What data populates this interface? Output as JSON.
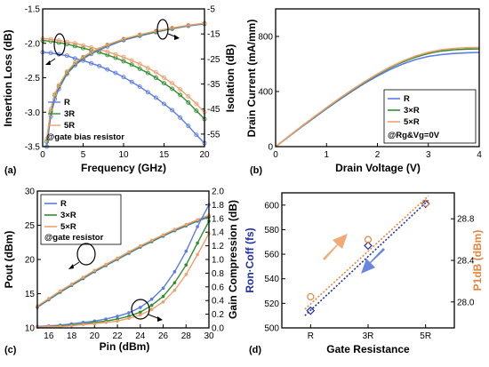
{
  "colors": {
    "R": "#5b7be8",
    "3R": "#2f8f2f",
    "5R": "#f0a070",
    "RonCoff": "#1f2fa8",
    "P1dB": "#e8843c",
    "arrow_orange": "#f09a60",
    "arrow_blue": "#4f72d8"
  },
  "panels": {
    "a": {
      "label": "(a)"
    },
    "b": {
      "label": "(b)"
    },
    "c": {
      "label": "(c)"
    },
    "d": {
      "label": "(d)"
    }
  },
  "chart_data": [
    {
      "panel": "a",
      "type": "line",
      "xlabel": "Frequency (GHz)",
      "ylabel_left": "Insertion Loss (dB)",
      "ylabel_right": "Isolation (dB)",
      "xlim": [
        0,
        20
      ],
      "ylim_left": [
        -3.5,
        -1.5
      ],
      "ylim_right": [
        -60,
        -5
      ],
      "x_ticks": [
        "0",
        "5",
        "10",
        "15",
        "20"
      ],
      "y_ticks_left": [
        "-3.5",
        "-3.0",
        "-2.5",
        "-2.0",
        "-1.5"
      ],
      "y_ticks_right": [
        "-55",
        "-45",
        "-35",
        "-25",
        "-15",
        "-5"
      ],
      "legend": [
        "R",
        "3R",
        "5R"
      ],
      "annotation": "@gate bias resistor",
      "series": [
        {
          "name": "R",
          "axis": "left",
          "x": [
            0,
            1,
            2,
            3,
            4,
            5,
            6,
            7,
            8,
            9,
            10,
            11,
            12,
            13,
            14,
            15,
            16,
            17,
            18,
            19,
            20
          ],
          "y": [
            -2.13,
            -2.14,
            -2.16,
            -2.18,
            -2.22,
            -2.25,
            -2.29,
            -2.33,
            -2.38,
            -2.43,
            -2.49,
            -2.56,
            -2.63,
            -2.71,
            -2.79,
            -2.88,
            -2.97,
            -3.08,
            -3.2,
            -3.33,
            -3.45
          ]
        },
        {
          "name": "3R",
          "axis": "left",
          "x": [
            0,
            1,
            2,
            3,
            4,
            5,
            6,
            7,
            8,
            9,
            10,
            11,
            12,
            13,
            14,
            15,
            16,
            17,
            18,
            19,
            20
          ],
          "y": [
            -1.96,
            -1.97,
            -1.99,
            -2.01,
            -2.04,
            -2.07,
            -2.1,
            -2.13,
            -2.17,
            -2.21,
            -2.26,
            -2.31,
            -2.37,
            -2.43,
            -2.5,
            -2.58,
            -2.66,
            -2.75,
            -2.86,
            -2.98,
            -3.1
          ]
        },
        {
          "name": "5R",
          "axis": "left",
          "x": [
            0,
            1,
            2,
            3,
            4,
            5,
            6,
            7,
            8,
            9,
            10,
            11,
            12,
            13,
            14,
            15,
            16,
            17,
            18,
            19,
            20
          ],
          "y": [
            -1.93,
            -1.94,
            -1.96,
            -1.98,
            -2.0,
            -2.03,
            -2.06,
            -2.09,
            -2.12,
            -2.16,
            -2.2,
            -2.25,
            -2.3,
            -2.36,
            -2.42,
            -2.5,
            -2.58,
            -2.67,
            -2.77,
            -2.88,
            -3.0
          ]
        },
        {
          "name": "R",
          "axis": "right",
          "x": [
            0.5,
            1,
            1.5,
            2,
            3,
            4,
            5,
            6,
            8,
            10,
            12,
            14,
            16,
            18,
            20
          ],
          "y": [
            -60,
            -48,
            -41,
            -37,
            -31,
            -27.5,
            -25,
            -23,
            -20,
            -17.5,
            -15.8,
            -14.3,
            -13,
            -11.8,
            -11
          ]
        },
        {
          "name": "3R",
          "axis": "right",
          "x": [
            0.5,
            1,
            1.5,
            2,
            3,
            4,
            5,
            6,
            8,
            10,
            12,
            14,
            16,
            18,
            20
          ],
          "y": [
            -58,
            -46,
            -39.5,
            -36,
            -30.5,
            -27,
            -24.5,
            -22.5,
            -19.5,
            -17.2,
            -15.5,
            -14,
            -12.8,
            -11.6,
            -10.8
          ]
        },
        {
          "name": "5R",
          "axis": "right",
          "x": [
            0.5,
            1,
            1.5,
            2,
            3,
            4,
            5,
            6,
            8,
            10,
            12,
            14,
            16,
            18,
            20
          ],
          "y": [
            -57,
            -45,
            -39,
            -35.5,
            -30,
            -26.5,
            -24.2,
            -22.2,
            -19.3,
            -17,
            -15.3,
            -13.8,
            -12.6,
            -11.5,
            -10.7
          ]
        }
      ]
    },
    {
      "panel": "b",
      "type": "line",
      "xlabel": "Drain Voltage (V)",
      "ylabel": "Drain Current (mA/mm)",
      "xlim": [
        0,
        4
      ],
      "ylim": [
        0,
        1000
      ],
      "x_ticks": [
        "0",
        "1",
        "2",
        "3",
        "4"
      ],
      "y_ticks": [
        "0",
        "400",
        "800"
      ],
      "legend": [
        "R",
        "3×R",
        "5×R"
      ],
      "annotation": "@Rg&Vg=0V",
      "series": [
        {
          "name": "R",
          "x": [
            0,
            0.25,
            0.5,
            0.75,
            1.0,
            1.25,
            1.5,
            1.75,
            2.0,
            2.25,
            2.5,
            2.75,
            3.0,
            3.25,
            3.5,
            3.75,
            4.0
          ],
          "y": [
            0,
            70,
            140,
            208,
            275,
            340,
            402,
            460,
            513,
            560,
            600,
            632,
            655,
            668,
            676,
            681,
            684
          ]
        },
        {
          "name": "3×R",
          "x": [
            0,
            0.25,
            0.5,
            0.75,
            1.0,
            1.25,
            1.5,
            1.75,
            2.0,
            2.25,
            2.5,
            2.75,
            3.0,
            3.25,
            3.5,
            3.75,
            4.0
          ],
          "y": [
            0,
            72,
            143,
            212,
            280,
            346,
            409,
            468,
            523,
            572,
            615,
            650,
            677,
            694,
            703,
            708,
            710
          ]
        },
        {
          "name": "5×R",
          "x": [
            0,
            0.25,
            0.5,
            0.75,
            1.0,
            1.25,
            1.5,
            1.75,
            2.0,
            2.25,
            2.5,
            2.75,
            3.0,
            3.25,
            3.5,
            3.75,
            4.0
          ],
          "y": [
            0,
            73,
            145,
            215,
            283,
            350,
            413,
            472,
            528,
            578,
            622,
            658,
            685,
            703,
            713,
            718,
            720
          ]
        }
      ]
    },
    {
      "panel": "c",
      "type": "line",
      "xlabel": "Pin (dBm)",
      "ylabel_left": "Pout (dBm)",
      "ylabel_right": "Gain Compression (dB)",
      "xlim": [
        15,
        30
      ],
      "ylim_left": [
        10,
        30
      ],
      "ylim_right": [
        0,
        2.0
      ],
      "x_ticks": [
        "16",
        "18",
        "20",
        "22",
        "24",
        "26",
        "28",
        "30"
      ],
      "y_ticks_left": [
        "10",
        "15",
        "20",
        "25",
        "30"
      ],
      "y_ticks_right": [
        "0.0",
        "0.2",
        "0.4",
        "0.6",
        "0.8",
        "1.0",
        "1.2",
        "1.4",
        "1.6",
        "1.8",
        "2.0"
      ],
      "legend": [
        "R",
        "3×R",
        "5×R"
      ],
      "annotation": "@gate resistor",
      "series": [
        {
          "name": "R",
          "axis": "left",
          "x": [
            15,
            16,
            17,
            18,
            19,
            20,
            21,
            22,
            23,
            24,
            25,
            26,
            27,
            28,
            29,
            30
          ],
          "y": [
            13.0,
            14.1,
            15.2,
            16.2,
            17.2,
            18.2,
            19.1,
            20.0,
            20.9,
            21.8,
            22.6,
            23.4,
            24.2,
            24.9,
            25.6,
            26.2
          ]
        },
        {
          "name": "3×R",
          "axis": "left",
          "x": [
            15,
            16,
            17,
            18,
            19,
            20,
            21,
            22,
            23,
            24,
            25,
            26,
            27,
            28,
            29,
            30
          ],
          "y": [
            13.1,
            14.2,
            15.3,
            16.3,
            17.3,
            18.3,
            19.2,
            20.1,
            21.0,
            21.9,
            22.7,
            23.5,
            24.3,
            25.0,
            25.7,
            26.3
          ]
        },
        {
          "name": "5×R",
          "axis": "left",
          "x": [
            15,
            16,
            17,
            18,
            19,
            20,
            21,
            22,
            23,
            24,
            25,
            26,
            27,
            28,
            29,
            30
          ],
          "y": [
            13.2,
            14.3,
            15.4,
            16.4,
            17.4,
            18.4,
            19.3,
            20.2,
            21.1,
            22.0,
            22.8,
            23.6,
            24.4,
            25.1,
            25.8,
            26.5
          ]
        },
        {
          "name": "R",
          "axis": "right",
          "x": [
            15,
            16,
            17,
            18,
            19,
            20,
            21,
            22,
            23,
            24,
            25,
            26,
            27,
            28,
            29,
            30
          ],
          "y": [
            0.02,
            0.03,
            0.04,
            0.06,
            0.08,
            0.1,
            0.13,
            0.17,
            0.22,
            0.3,
            0.42,
            0.58,
            0.82,
            1.12,
            1.48,
            1.8
          ]
        },
        {
          "name": "3×R",
          "axis": "right",
          "x": [
            15,
            16,
            17,
            18,
            19,
            20,
            21,
            22,
            23,
            24,
            25,
            26,
            27,
            28,
            29,
            30
          ],
          "y": [
            0.01,
            0.02,
            0.03,
            0.04,
            0.06,
            0.08,
            0.1,
            0.13,
            0.17,
            0.23,
            0.33,
            0.46,
            0.66,
            0.92,
            1.24,
            1.56
          ]
        },
        {
          "name": "5×R",
          "axis": "right",
          "x": [
            15,
            16,
            17,
            18,
            19,
            20,
            21,
            22,
            23,
            24,
            25,
            26,
            27,
            28,
            29,
            30
          ],
          "y": [
            0.01,
            0.02,
            0.02,
            0.03,
            0.05,
            0.06,
            0.08,
            0.1,
            0.14,
            0.19,
            0.27,
            0.38,
            0.55,
            0.78,
            1.07,
            1.38
          ]
        }
      ]
    },
    {
      "panel": "d",
      "type": "scatter",
      "xlabel": "Gate Resistance",
      "ylabel_left": "Ron·Coff (fs)",
      "ylabel_right": "P1dB (dBm)",
      "categories": [
        "R",
        "3R",
        "5R"
      ],
      "ylim_left": [
        500,
        610
      ],
      "ylim_right": [
        27.75,
        29.05
      ],
      "y_ticks_left": [
        "500",
        "520",
        "540",
        "560",
        "580",
        "600"
      ],
      "y_ticks_right": [
        "28.0",
        "28.4",
        "28.8"
      ],
      "series": [
        {
          "name": "Ron·Coff",
          "axis": "left",
          "marker": "diamond",
          "values": [
            514,
            567,
            601
          ]
        },
        {
          "name": "P1dB",
          "axis": "right",
          "marker": "circle",
          "values": [
            28.05,
            28.6,
            28.95
          ]
        }
      ],
      "fits": [
        {
          "series": "Ron·Coff",
          "style": "dotted",
          "x": [
            -0.1,
            2.05
          ],
          "y": [
            510,
            604
          ]
        },
        {
          "series": "P1dB",
          "style": "dotted",
          "x": [
            -0.1,
            2.05
          ],
          "y": [
            27.93,
            29.02
          ]
        }
      ]
    }
  ]
}
